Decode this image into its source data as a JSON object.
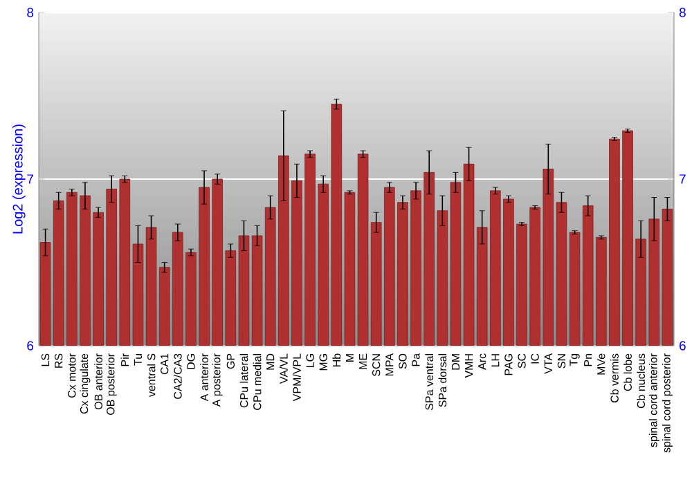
{
  "chart_data": {
    "type": "bar",
    "ylabel": "Log2 (expression)",
    "categories": [
      "LS",
      "RS",
      "Cx motor",
      "Cx cingulate",
      "OB anterior",
      "OB posterior",
      "Pir",
      "Tu",
      "ventral S",
      "CA1",
      "CA2/CA3",
      "DG",
      "A anterior",
      "A posterior",
      "GP",
      "CPu lateral",
      "CPu medial",
      "MD",
      "VA/VL",
      "VPM/VPL",
      "LG",
      "MG",
      "Hb",
      "M",
      "ME",
      "SCN",
      "MPA",
      "SO",
      "Pa",
      "SPa ventral",
      "SPa dorsal",
      "DM",
      "VMH",
      "Arc",
      "LH",
      "PAG",
      "SC",
      "IC",
      "VTA",
      "SN",
      "Tg",
      "Pn",
      "MVe",
      "Cb vermis",
      "Cb lobe",
      "Cb nucleus",
      "spinal cord anterior",
      "spinal cord posterior"
    ],
    "values": [
      6.62,
      6.87,
      6.92,
      6.9,
      6.8,
      6.94,
      7.0,
      6.61,
      6.71,
      6.47,
      6.68,
      6.56,
      6.95,
      7.0,
      6.57,
      6.66,
      6.66,
      6.83,
      7.14,
      6.99,
      7.15,
      6.97,
      7.45,
      6.92,
      7.15,
      6.74,
      6.95,
      6.86,
      6.93,
      7.04,
      6.81,
      6.98,
      7.09,
      6.71,
      6.93,
      6.88,
      6.73,
      6.83,
      7.06,
      6.86,
      6.68,
      6.84,
      6.65,
      7.24,
      7.29,
      6.64,
      6.76,
      6.82
    ],
    "errors": [
      0.08,
      0.05,
      0.02,
      0.08,
      0.03,
      0.08,
      0.02,
      0.11,
      0.07,
      0.03,
      0.05,
      0.02,
      0.1,
      0.03,
      0.04,
      0.09,
      0.06,
      0.07,
      0.27,
      0.1,
      0.02,
      0.05,
      0.03,
      0.01,
      0.02,
      0.06,
      0.03,
      0.04,
      0.05,
      0.13,
      0.09,
      0.06,
      0.1,
      0.1,
      0.02,
      0.02,
      0.01,
      0.01,
      0.15,
      0.06,
      0.01,
      0.06,
      0.01,
      0.01,
      0.01,
      0.11,
      0.13,
      0.07
    ],
    "color": "#b03030",
    "ylim": [
      6,
      8
    ],
    "yticks": [
      6,
      7,
      8
    ],
    "y2lim": [
      6,
      8
    ],
    "y2ticks": [
      6,
      7,
      8
    ],
    "grid": "y"
  }
}
